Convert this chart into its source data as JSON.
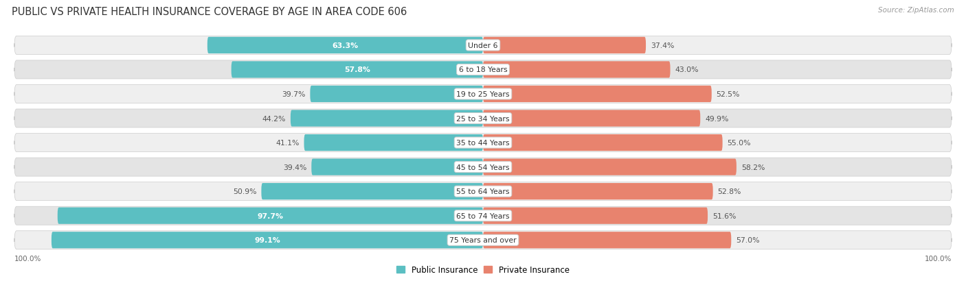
{
  "title": "PUBLIC VS PRIVATE HEALTH INSURANCE COVERAGE BY AGE IN AREA CODE 606",
  "source": "Source: ZipAtlas.com",
  "categories": [
    "Under 6",
    "6 to 18 Years",
    "19 to 25 Years",
    "25 to 34 Years",
    "35 to 44 Years",
    "45 to 54 Years",
    "55 to 64 Years",
    "65 to 74 Years",
    "75 Years and over"
  ],
  "public_values": [
    63.3,
    57.8,
    39.7,
    44.2,
    41.1,
    39.4,
    50.9,
    97.7,
    99.1
  ],
  "private_values": [
    37.4,
    43.0,
    52.5,
    49.9,
    55.0,
    58.2,
    52.8,
    51.6,
    57.0
  ],
  "public_color": "#5bbfc2",
  "private_color": "#e8836e",
  "row_bg_light": "#efefef",
  "row_bg_dark": "#e4e4e4",
  "title_fontsize": 10.5,
  "source_fontsize": 7.5,
  "bar_label_fontsize": 7.8,
  "category_fontsize": 7.8,
  "legend_fontsize": 8.5,
  "axis_label_fontsize": 7.5,
  "inside_label_threshold": 55.0,
  "scale": 0.92
}
